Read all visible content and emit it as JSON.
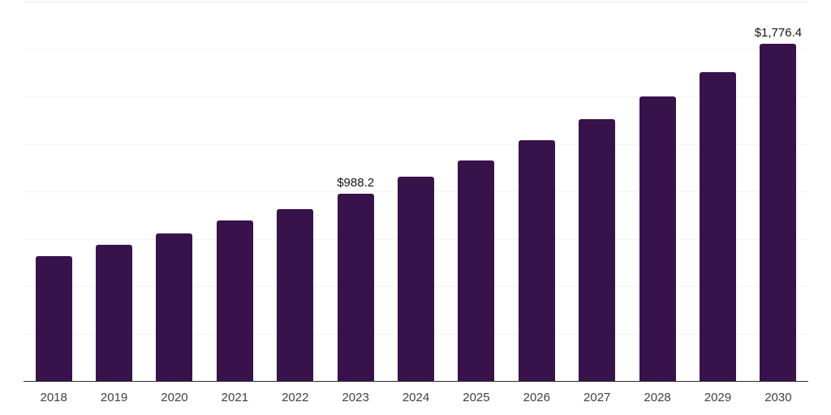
{
  "chart": {
    "background_color": "#ffffff",
    "bar_color": "#38124a",
    "axis_line_color": "#2b2b2b",
    "gridline_color": "#f3f3f3",
    "top_border_color": "#eaeaea",
    "tick_label_color": "#3f3f3f",
    "data_label_color": "#141414"
  },
  "chart_data": {
    "type": "bar",
    "title": "",
    "xlabel": "",
    "ylabel": "",
    "categories": [
      "2018",
      "2019",
      "2020",
      "2021",
      "2022",
      "2023",
      "2024",
      "2025",
      "2026",
      "2027",
      "2028",
      "2029",
      "2030"
    ],
    "values": [
      659,
      719,
      779,
      848,
      908,
      988.2,
      1077,
      1163,
      1268,
      1380,
      1499,
      1628,
      1776.4
    ],
    "data_labels": [
      {
        "category": "2023",
        "text": "$988.2"
      },
      {
        "category": "2030",
        "text": "$1,776.4"
      }
    ],
    "ylim": [
      0,
      2000
    ],
    "gridline_interval": 250,
    "grid": "horizontal",
    "legend": "none",
    "y_axis_ticks_visible": false
  }
}
